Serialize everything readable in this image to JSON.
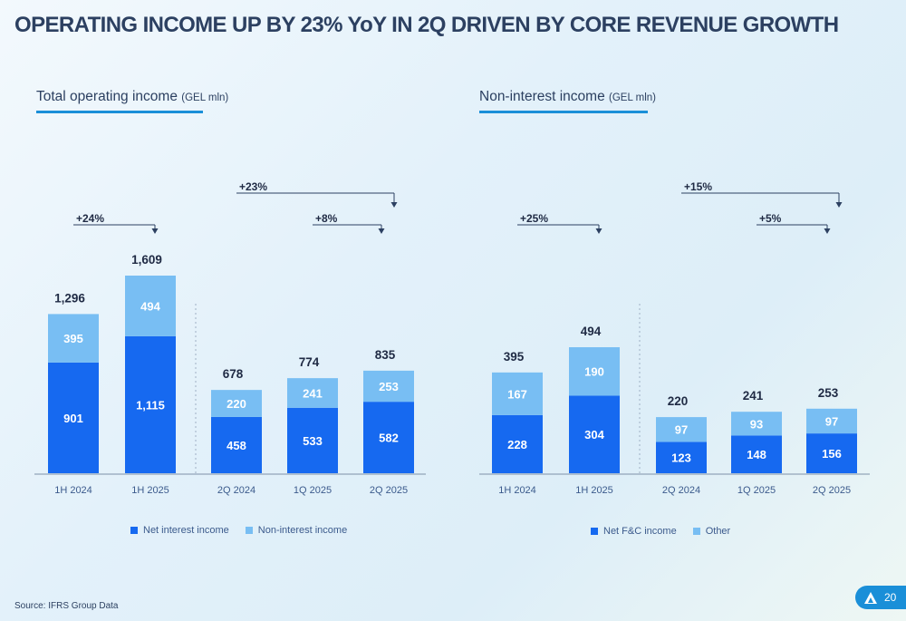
{
  "title": "OPERATING INCOME UP BY 23% YoY IN 2Q DRIVEN BY CORE REVENUE GROWTH",
  "source": "Source: IFRS Group Data",
  "page_number": "20",
  "colors": {
    "primary_bar": "#1669f0",
    "secondary_bar": "#78bef3",
    "accent": "#1a8fd8",
    "arrow": "#2c4061"
  },
  "logo_icon": "triangle-logo-icon",
  "chart_data": [
    {
      "type": "bar",
      "stacked": true,
      "title": "Total operating income",
      "unit": "(GEL mln)",
      "categories": [
        "1H 2024",
        "1H 2025",
        "2Q 2024",
        "1Q 2025",
        "2Q 2025"
      ],
      "series": [
        {
          "name": "Net interest income",
          "values": [
            901,
            1115,
            458,
            533,
            582
          ]
        },
        {
          "name": "Non-interest income",
          "values": [
            395,
            494,
            220,
            241,
            253
          ]
        }
      ],
      "totals": [
        "1,296",
        "1,609",
        "678",
        "774",
        "835"
      ],
      "data_labels": {
        "Net interest income": [
          "901",
          "1,115",
          "458",
          "533",
          "582"
        ],
        "Non-interest income": [
          "395",
          "494",
          "220",
          "241",
          "253"
        ]
      },
      "annotations": [
        {
          "label": "+24%",
          "from": "1H 2024",
          "to": "1H 2025"
        },
        {
          "label": "+23%",
          "from": "2Q 2024",
          "to": "2Q 2025"
        },
        {
          "label": "+8%",
          "from": "1Q 2025",
          "to": "2Q 2025"
        }
      ],
      "legend": [
        "Net interest income",
        "Non-interest income"
      ]
    },
    {
      "type": "bar",
      "stacked": true,
      "title": "Non-interest income",
      "unit": "(GEL mln)",
      "categories": [
        "1H 2024",
        "1H 2025",
        "2Q 2024",
        "1Q 2025",
        "2Q 2025"
      ],
      "series": [
        {
          "name": "Net F&C income",
          "values": [
            228,
            304,
            123,
            148,
            156
          ]
        },
        {
          "name": "Other",
          "values": [
            167,
            190,
            97,
            93,
            97
          ]
        }
      ],
      "totals": [
        "395",
        "494",
        "220",
        "241",
        "253"
      ],
      "data_labels": {
        "Net F&C income": [
          "228",
          "304",
          "123",
          "148",
          "156"
        ],
        "Other": [
          "167",
          "190",
          "97",
          "93",
          "97"
        ]
      },
      "annotations": [
        {
          "label": "+25%",
          "from": "1H 2024",
          "to": "1H 2025"
        },
        {
          "label": "+15%",
          "from": "2Q 2024",
          "to": "2Q 2025"
        },
        {
          "label": "+5%",
          "from": "1Q 2025",
          "to": "2Q 2025"
        }
      ],
      "legend": [
        "Net F&C income",
        "Other"
      ]
    }
  ]
}
